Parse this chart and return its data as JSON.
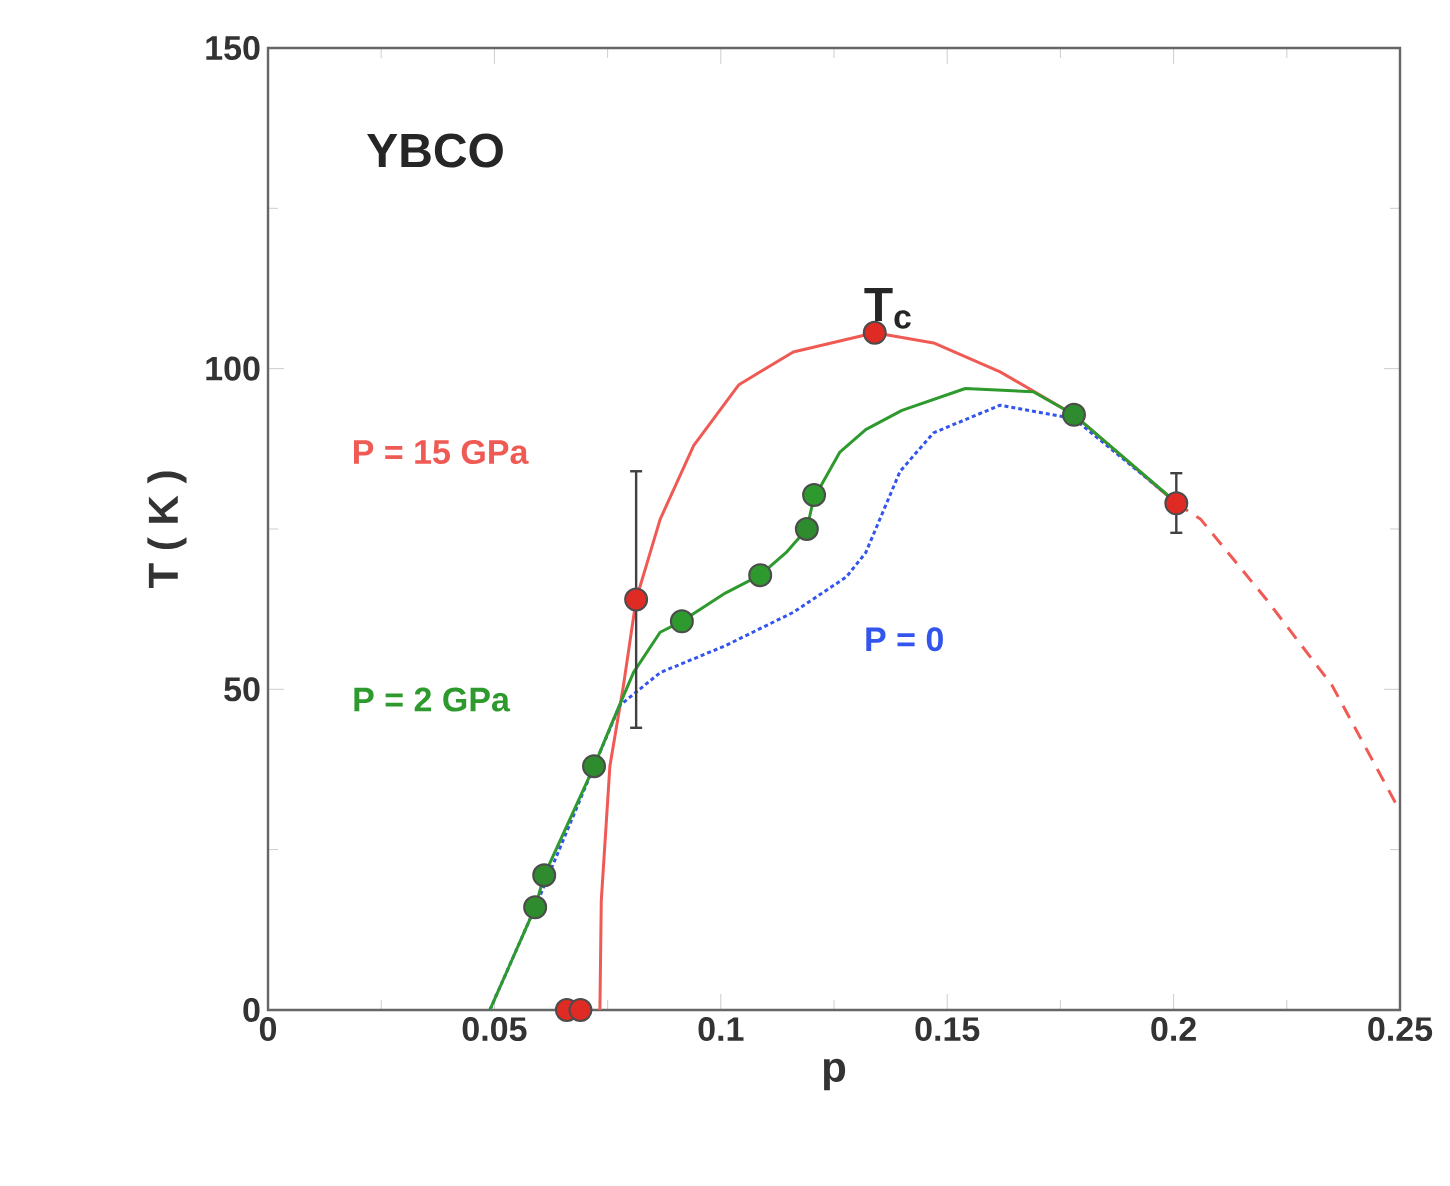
{
  "chart_data": {
    "type": "line",
    "xlabel": "p",
    "ylabel": "T ( K )",
    "annotations": [
      "YBCO",
      "T$_{c}$"
    ],
    "xlim": [
      0,
      0.25
    ],
    "ylim": [
      0,
      150
    ],
    "xticks": [
      0,
      0.05,
      0.1,
      0.15,
      0.2,
      0.25
    ],
    "yticks": [
      0,
      50,
      100,
      150
    ],
    "series": [
      {
        "name": "P = 15 GPa",
        "color": "#f05a55",
        "line_style": "solid",
        "x": [
          0.0733,
          0.0736,
          0.0755,
          0.0785,
          0.0813,
          0.0866,
          0.094,
          0.104,
          0.116,
          0.134,
          0.147,
          0.1617,
          0.178,
          0.2006
        ],
        "values": [
          0,
          17,
          38,
          50.6,
          64,
          76.5,
          88,
          97.5,
          102.6,
          105.6,
          104,
          99.5,
          92.8,
          79
        ]
      },
      {
        "color": "#f05a55",
        "line_style": "dashed",
        "x": [
          0.2006,
          0.206,
          0.2205,
          0.235,
          0.25
        ],
        "values": [
          79,
          76.5,
          64,
          50.6,
          31
        ]
      },
      {
        "name": "P = 0",
        "color": "#3355ee",
        "line_style": "dotted",
        "x": [
          0.049,
          0.059,
          0.072,
          0.0777,
          0.0866,
          0.101,
          0.116,
          0.1277,
          0.132,
          0.1396,
          0.147,
          0.1617,
          0.178,
          0.2
        ],
        "values": [
          0,
          16,
          38,
          47.5,
          52.6,
          56.8,
          62,
          67.5,
          71.3,
          84,
          90,
          94.3,
          92.2,
          79.5
        ]
      },
      {
        "name": "P = 2 GPa",
        "color": "#2e9a2e",
        "line_style": "solid",
        "x": [
          0.049,
          0.059,
          0.061,
          0.072,
          0.0763,
          0.0807,
          0.0866,
          0.0914,
          0.101,
          0.1087,
          0.1144,
          0.119,
          0.1205,
          0.1263,
          0.132,
          0.14,
          0.154,
          0.169,
          0.178,
          0.2
        ],
        "values": [
          0,
          16,
          21,
          38,
          45.3,
          52.6,
          58.9,
          60.6,
          65,
          67.8,
          71.3,
          75,
          79.7,
          87,
          90.5,
          93.5,
          96.9,
          96.4,
          92.8,
          79.5
        ]
      },
      {
        "type": "scatter",
        "color": "#2e8b2e",
        "x": [
          0.059,
          0.061,
          0.072,
          0.119,
          0.178
        ],
        "values": [
          16,
          21,
          38,
          75,
          92.8
        ]
      },
      {
        "type": "scatter",
        "color": "#2e9a2e",
        "x": [
          0.0914,
          0.1087,
          0.1206
        ],
        "values": [
          60.6,
          67.8,
          80.3
        ]
      },
      {
        "type": "scatter",
        "color": "#e02a24",
        "x": [
          0.066,
          0.069,
          0.0813,
          0.134,
          0.2006
        ],
        "values": [
          0,
          0,
          64,
          105.6,
          79
        ],
        "errors": [
          null,
          null,
          [
            44,
            84
          ],
          null,
          [
            74.4,
            83.7
          ]
        ]
      }
    ]
  }
}
